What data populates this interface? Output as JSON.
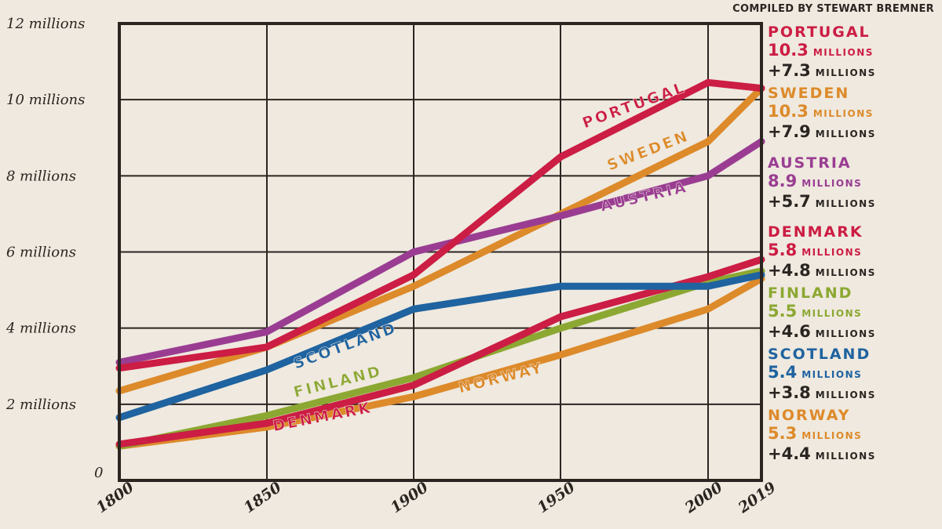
{
  "credit": "COMPILED BY STEWART BREMNER",
  "chart_data": {
    "type": "line",
    "x_ticks": [
      "1800",
      "1850",
      "1900",
      "1950",
      "2000",
      "2019"
    ],
    "y_ticks": [
      "0",
      "2 millions",
      "4 millions",
      "6 millions",
      "8 millions",
      "10 millions",
      "12 millions"
    ],
    "xlim": [
      1800,
      2019
    ],
    "ylim": [
      0,
      12
    ],
    "grid": true,
    "series": [
      {
        "name": "NORWAY",
        "color": "#dd8a2a",
        "x": [
          1800,
          1850,
          1900,
          1950,
          2000,
          2019
        ],
        "y": [
          0.9,
          1.4,
          2.2,
          3.3,
          4.5,
          5.3
        ]
      },
      {
        "name": "FINLAND",
        "color": "#8ca832",
        "x": [
          1800,
          1850,
          1900,
          1950,
          2000,
          2019
        ],
        "y": [
          0.9,
          1.7,
          2.7,
          4.0,
          5.2,
          5.5
        ]
      },
      {
        "name": "DENMARK",
        "color": "#cc1d44",
        "x": [
          1800,
          1850,
          1900,
          1950,
          2000,
          2019
        ],
        "y": [
          0.95,
          1.5,
          2.5,
          4.3,
          5.35,
          5.8
        ]
      },
      {
        "name": "SCOTLAND",
        "color": "#1f63a0",
        "x": [
          1800,
          1850,
          1900,
          1950,
          2000,
          2019
        ],
        "y": [
          1.65,
          2.9,
          4.5,
          5.1,
          5.1,
          5.4
        ]
      },
      {
        "name": "SWEDEN",
        "color": "#dd8a2a",
        "x": [
          1800,
          1850,
          1900,
          1950,
          2000,
          2019
        ],
        "y": [
          2.35,
          3.5,
          5.1,
          7.0,
          8.9,
          10.3
        ]
      },
      {
        "name": "AUSTRIA",
        "color": "#9a3d92",
        "x": [
          1800,
          1850,
          1900,
          1950,
          2000,
          2019
        ],
        "y": [
          3.1,
          3.9,
          6.0,
          6.95,
          8.0,
          8.9
        ]
      },
      {
        "name": "PORTUGAL",
        "color": "#cc1d44",
        "x": [
          1800,
          1850,
          1900,
          1950,
          2000,
          2019
        ],
        "y": [
          2.95,
          3.5,
          5.4,
          8.5,
          10.45,
          10.3
        ]
      }
    ],
    "legend": [
      {
        "name": "PORTUGAL",
        "value": "10.3",
        "gain": "+7.3",
        "unit": "MILLIONS",
        "color": "#cc1d44"
      },
      {
        "name": "SWEDEN",
        "value": "10.3",
        "gain": "+7.9",
        "unit": "MILLIONS",
        "color": "#dd8a2a"
      },
      {
        "name": "AUSTRIA",
        "value": "8.9",
        "gain": "+5.7",
        "unit": "MILLIONS",
        "color": "#9a3d92"
      },
      {
        "name": "DENMARK",
        "value": "5.8",
        "gain": "+4.8",
        "unit": "MILLIONS",
        "color": "#cc1d44"
      },
      {
        "name": "FINLAND",
        "value": "5.5",
        "gain": "+4.6",
        "unit": "MILLIONS",
        "color": "#8ca832"
      },
      {
        "name": "SCOTLAND",
        "value": "5.4",
        "gain": "+3.8",
        "unit": "MILLIONS",
        "color": "#1f63a0"
      },
      {
        "name": "NORWAY",
        "value": "5.3",
        "gain": "+4.4",
        "unit": "MILLIONS",
        "color": "#dd8a2a"
      }
    ]
  }
}
